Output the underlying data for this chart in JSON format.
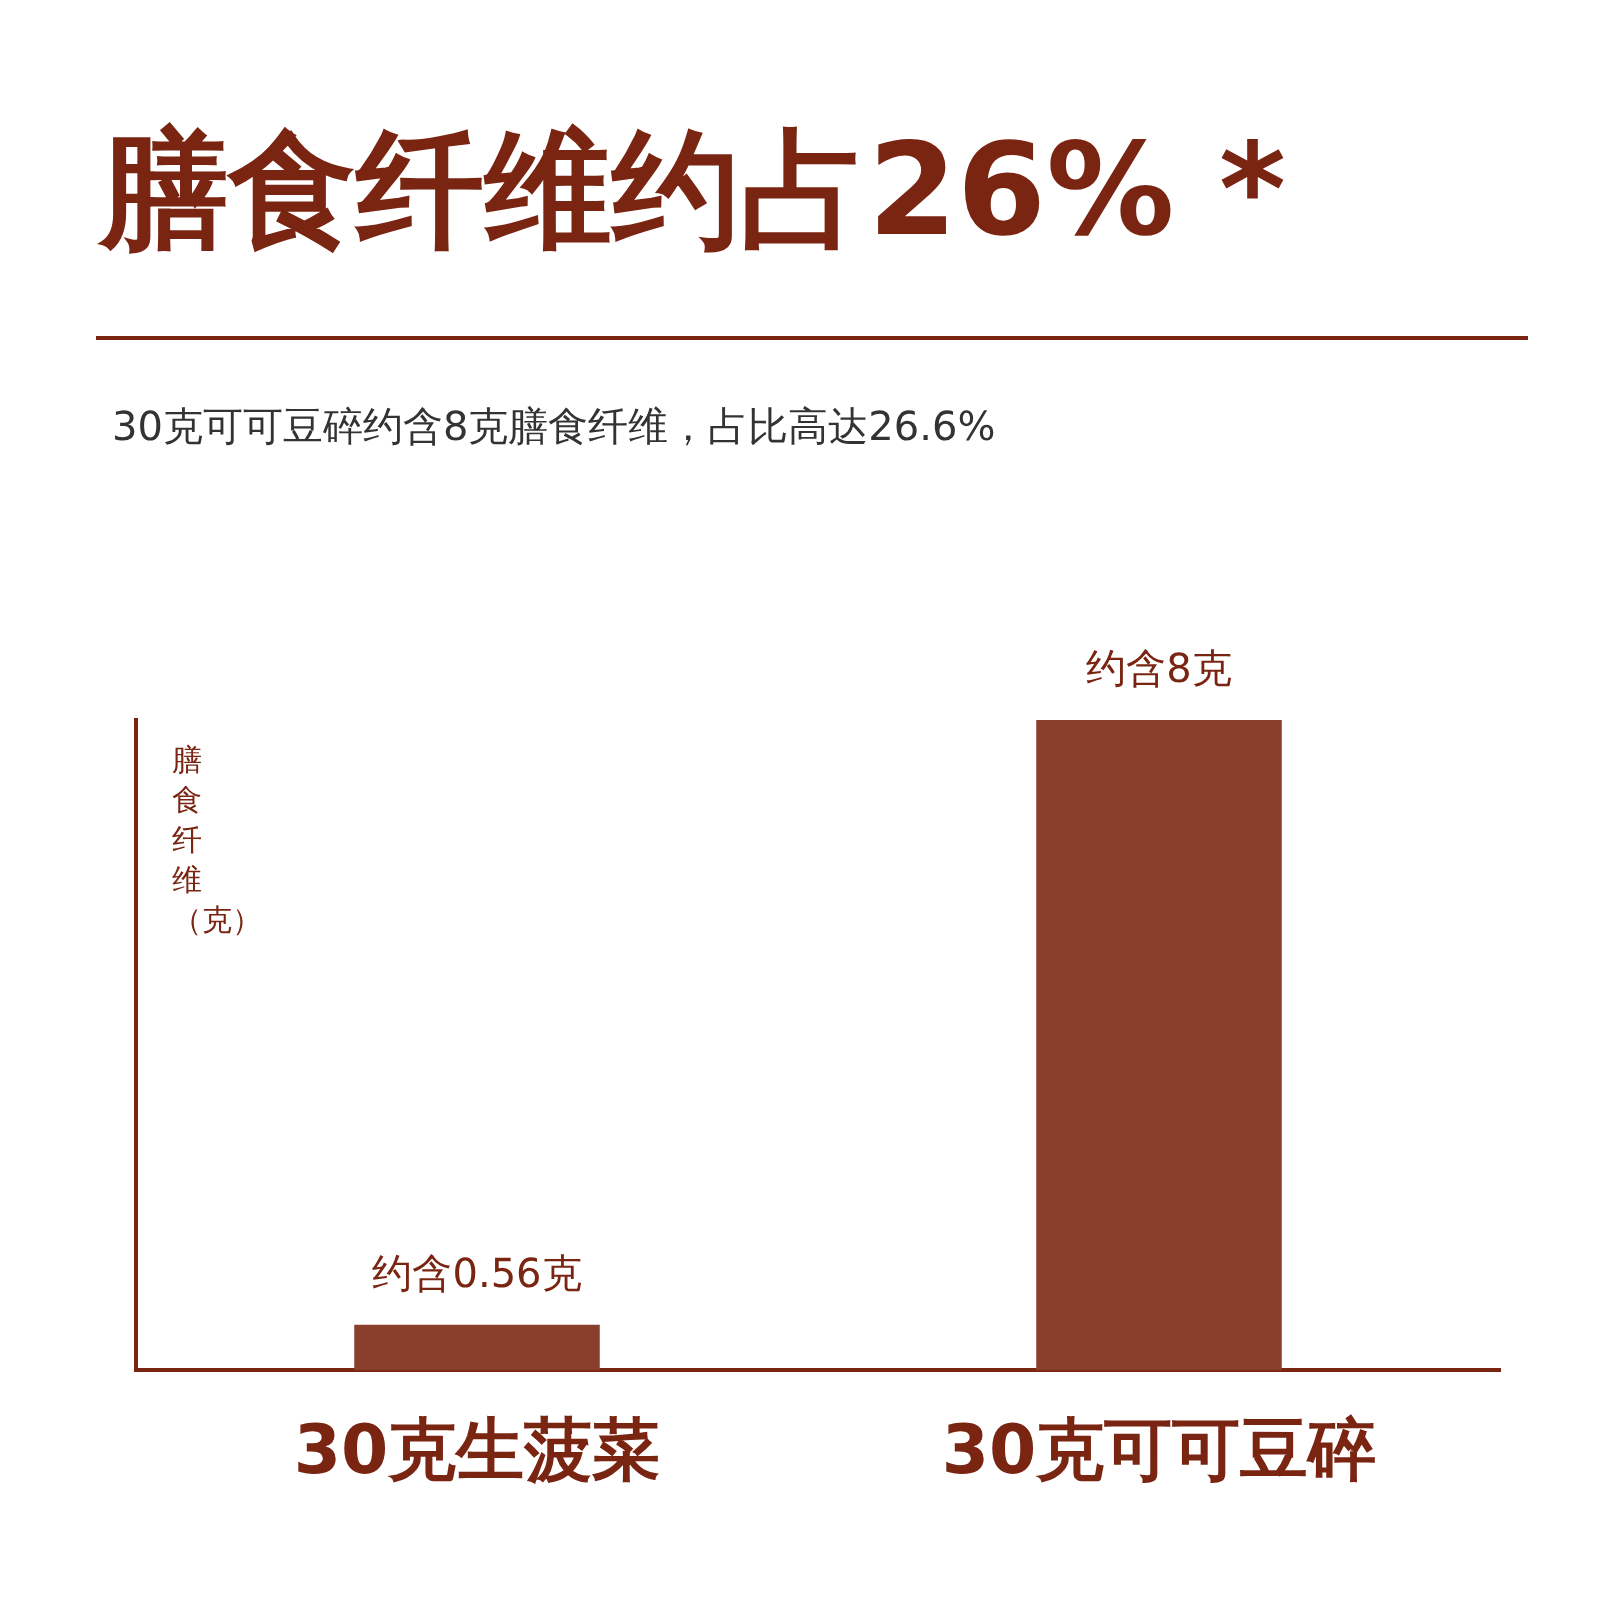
{
  "chart_data": {
    "type": "bar",
    "title": "膳食纤维约占26% *",
    "subtitle": "30克可可豆碎约含8克膳食纤维，占比高达26.6%",
    "ylabel": "膳食纤维（克）",
    "categories": [
      "30克生菠菜",
      "30克可可豆碎"
    ],
    "values": [
      0.56,
      8
    ],
    "value_labels": [
      "约含0.56克",
      "约含8克"
    ],
    "color": "#8a3f2c",
    "grid": false,
    "legend": false,
    "tick_labels": "x"
  }
}
